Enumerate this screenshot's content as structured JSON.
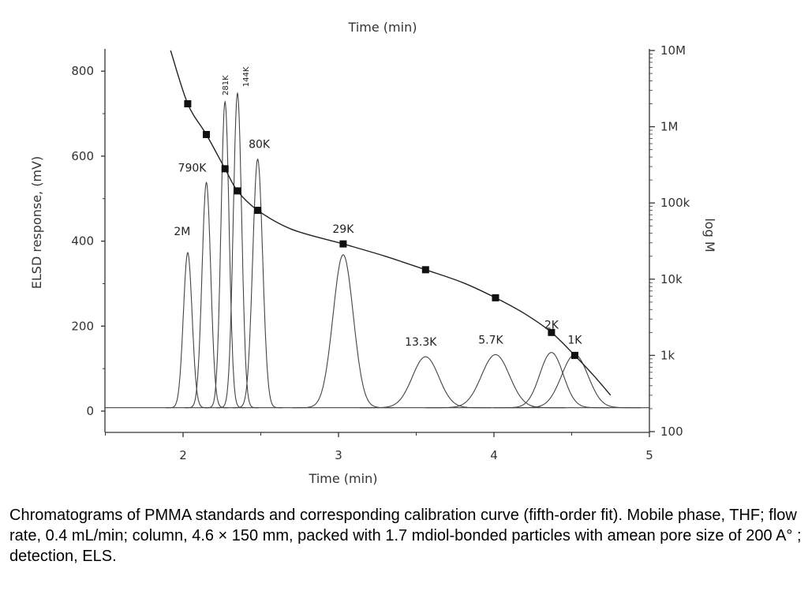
{
  "chart_data": {
    "type": "line",
    "top_title_clipped": "Time (min)",
    "xlabel": "Time (min)",
    "ylabel": "ELSD response, (mV)",
    "y2label": "log M",
    "xlim": [
      1.5,
      5
    ],
    "ylim": [
      -60,
      850
    ],
    "x_ticks": [
      2,
      3,
      4,
      5
    ],
    "y_ticks": [
      0,
      200,
      400,
      600,
      800
    ],
    "y2_scale": "log",
    "y2_ticks": [
      {
        "value": 100,
        "label": "100"
      },
      {
        "value": 1000,
        "label": "1k"
      },
      {
        "value": 10000,
        "label": "10k"
      },
      {
        "value": 100000,
        "label": "100k"
      },
      {
        "value": 1000000,
        "label": "1M"
      },
      {
        "value": 10000000,
        "label": "10M"
      }
    ],
    "peaks": [
      {
        "label": "2M",
        "time": 2.03,
        "height": 365,
        "width": 0.028
      },
      {
        "label": "790K",
        "time": 2.15,
        "height": 530,
        "width": 0.028
      },
      {
        "label": "281K",
        "time": 2.27,
        "height": 720,
        "width": 0.026
      },
      {
        "label": "144K",
        "time": 2.35,
        "height": 740,
        "width": 0.027
      },
      {
        "label": "80K",
        "time": 2.48,
        "height": 585,
        "width": 0.032
      },
      {
        "label": "29K",
        "time": 3.03,
        "height": 360,
        "width": 0.065
      },
      {
        "label": "13.3K",
        "time": 3.56,
        "height": 120,
        "width": 0.085
      },
      {
        "label": "5.7K",
        "time": 4.01,
        "height": 125,
        "width": 0.09
      },
      {
        "label": "2K",
        "time": 4.37,
        "height": 130,
        "width": 0.075
      },
      {
        "label": "1K",
        "time": 4.52,
        "height": 125,
        "width": 0.085
      }
    ],
    "baseline": 8,
    "calibration_points": [
      {
        "time": 2.03,
        "M": 2000000
      },
      {
        "time": 2.15,
        "M": 790000
      },
      {
        "time": 2.27,
        "M": 281000
      },
      {
        "time": 2.35,
        "M": 144000
      },
      {
        "time": 2.48,
        "M": 80000
      },
      {
        "time": 3.03,
        "M": 29000
      },
      {
        "time": 3.56,
        "M": 13300
      },
      {
        "time": 4.01,
        "M": 5700
      },
      {
        "time": 4.37,
        "M": 2000
      },
      {
        "time": 4.52,
        "M": 1000
      }
    ],
    "calibration_curve": [
      {
        "time": 1.92,
        "M": 10000000
      },
      {
        "time": 2.03,
        "M": 2000000
      },
      {
        "time": 2.15,
        "M": 790000
      },
      {
        "time": 2.27,
        "M": 281000
      },
      {
        "time": 2.35,
        "M": 144000
      },
      {
        "time": 2.48,
        "M": 80000
      },
      {
        "time": 2.7,
        "M": 45000
      },
      {
        "time": 3.03,
        "M": 29000
      },
      {
        "time": 3.3,
        "M": 20000
      },
      {
        "time": 3.56,
        "M": 13300
      },
      {
        "time": 3.8,
        "M": 9000
      },
      {
        "time": 4.01,
        "M": 5700
      },
      {
        "time": 4.2,
        "M": 3500
      },
      {
        "time": 4.37,
        "M": 2000
      },
      {
        "time": 4.52,
        "M": 1000
      },
      {
        "time": 4.65,
        "M": 520
      },
      {
        "time": 4.75,
        "M": 300
      }
    ],
    "grid": false
  },
  "caption": "Chromatograms of PMMA standards and corresponding calibration curve (fifth-order fit). Mobile phase, THF; flow rate, 0.4 mL/min; column, 4.6 × 150 mm, packed with 1.7 mdiol-bonded particles with amean pore size of 200 A° ; detection, ELS."
}
